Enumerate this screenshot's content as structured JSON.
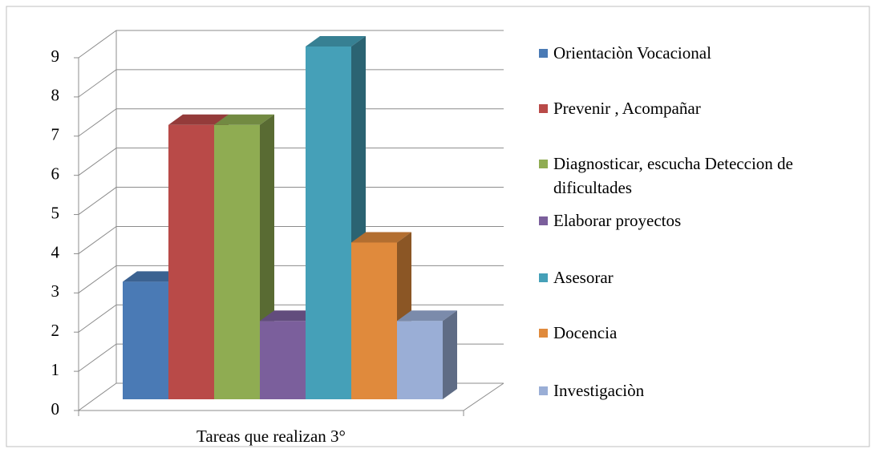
{
  "chart_data": {
    "type": "bar3d",
    "categories": [
      "Tareas que realizan 3°"
    ],
    "series": [
      {
        "name": "Orientaciòn Vocacional",
        "color": "#4a7ab5",
        "values": [
          3
        ]
      },
      {
        "name": "Prevenir , Acompañar",
        "color": "#b94a48",
        "values": [
          7
        ]
      },
      {
        "name": "Diagnosticar, escucha Deteccion de dificultades",
        "color": "#8fac52",
        "values": [
          7
        ]
      },
      {
        "name": "Elaborar proyectos",
        "color": "#7b5f9c",
        "values": [
          2
        ]
      },
      {
        "name": "Asesorar",
        "color": "#45a0b8",
        "values": [
          9
        ]
      },
      {
        "name": "Docencia",
        "color": "#e08a3c",
        "values": [
          4
        ]
      },
      {
        "name": "Investigaciòn",
        "color": "#9aaed6",
        "values": [
          2
        ]
      }
    ],
    "ylim": [
      0,
      9
    ],
    "yticks": [
      0,
      1,
      2,
      3,
      4,
      5,
      6,
      7,
      8,
      9
    ],
    "grid": true,
    "legend": "right"
  }
}
